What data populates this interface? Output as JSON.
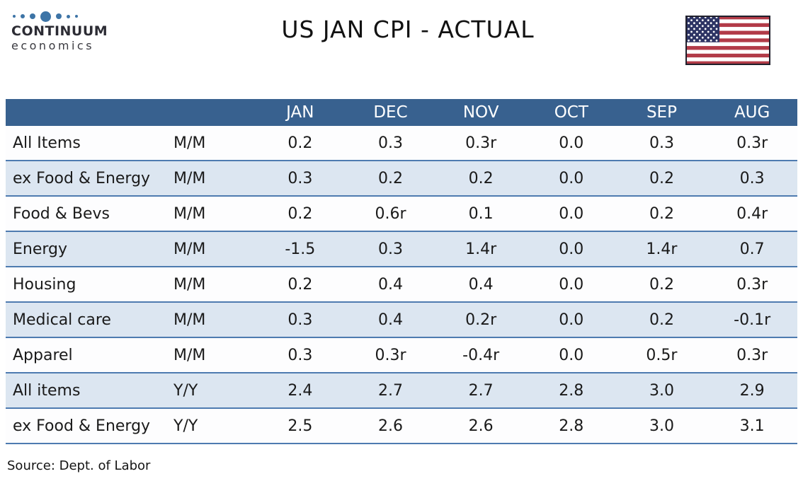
{
  "logo": {
    "name": "CONTINUUM",
    "tagline": "economics"
  },
  "header": {
    "title": "US JAN CPI - ACTUAL",
    "flag": "us-flag"
  },
  "chart_data": {
    "type": "table",
    "title": "US JAN CPI - ACTUAL",
    "columns": [
      "JAN",
      "DEC",
      "NOV",
      "OCT",
      "SEP",
      "AUG"
    ],
    "rows": [
      {
        "label": "All Items",
        "basis": "M/M",
        "values": [
          "0.2",
          "0.3",
          "0.3r",
          "0.0",
          "0.3",
          "0.3r"
        ]
      },
      {
        "label": "ex Food & Energy",
        "basis": "M/M",
        "values": [
          "0.3",
          "0.2",
          "0.2",
          "0.0",
          "0.2",
          "0.3"
        ]
      },
      {
        "label": "Food & Bevs",
        "basis": "M/M",
        "values": [
          "0.2",
          "0.6r",
          "0.1",
          "0.0",
          "0.2",
          "0.4r"
        ]
      },
      {
        "label": "Energy",
        "basis": "M/M",
        "values": [
          "-1.5",
          "0.3",
          "1.4r",
          "0.0",
          "1.4r",
          "0.7"
        ]
      },
      {
        "label": "Housing",
        "basis": "M/M",
        "values": [
          "0.2",
          "0.4",
          "0.4",
          "0.0",
          "0.2",
          "0.3r"
        ]
      },
      {
        "label": "Medical care",
        "basis": "M/M",
        "values": [
          "0.3",
          "0.4",
          "0.2r",
          "0.0",
          "0.2",
          "-0.1r"
        ]
      },
      {
        "label": "Apparel",
        "basis": "M/M",
        "values": [
          "0.3",
          "0.3r",
          "-0.4r",
          "0.0",
          "0.5r",
          "0.3r"
        ]
      },
      {
        "label": "All items",
        "basis": "Y/Y",
        "values": [
          "2.4",
          "2.7",
          "2.7",
          "2.8",
          "3.0",
          "2.9"
        ]
      },
      {
        "label": "ex Food & Energy",
        "basis": "Y/Y",
        "values": [
          "2.5",
          "2.6",
          "2.6",
          "2.8",
          "3.0",
          "3.1"
        ]
      }
    ],
    "source": "Source: Dept. of Labor",
    "layout": {
      "grid": "horizontal row dividers only",
      "header_fill": "blue",
      "zebra": "white / light blue"
    }
  },
  "source": "Source: Dept. of Labor",
  "colors": {
    "header-blue": "#38618f",
    "divider-blue": "#4e7bb0",
    "row-white": "#fdfdfe",
    "row-blue": "#dce6f1",
    "logo-blue": "#3d74a6",
    "flag-red": "#b23b48",
    "flag-navy": "#2d3464",
    "flag-border": "#20202c"
  }
}
